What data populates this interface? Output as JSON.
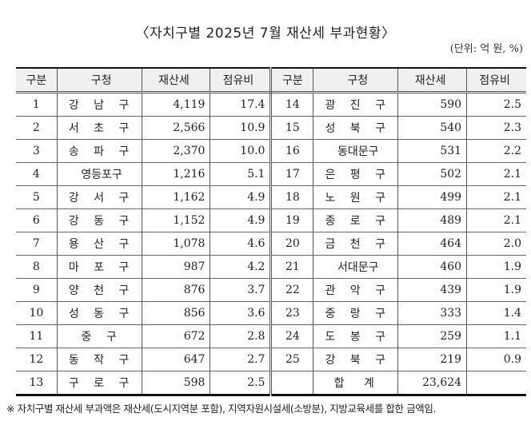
{
  "title": "〈자치구별 2025년 7월 재산세 부과현황〉",
  "unit": "(단위: 억 원, %)",
  "headers": [
    "구분",
    "구청",
    "재산세",
    "점유비",
    "구분",
    "구청",
    "재산세",
    "점유비"
  ],
  "left_rows": [
    {
      "no": "1",
      "name": "강 남 구",
      "tax": "4,119",
      "pct": "17.4"
    },
    {
      "no": "2",
      "name": "서 초 구",
      "tax": "2,566",
      "pct": "10.9"
    },
    {
      "no": "3",
      "name": "송 파 구",
      "tax": "2,370",
      "pct": "10.0"
    },
    {
      "no": "4",
      "name": "영등포구",
      "tax": "1,216",
      "pct": "5.1"
    },
    {
      "no": "5",
      "name": "강 서 구",
      "tax": "1,162",
      "pct": "4.9"
    },
    {
      "no": "6",
      "name": "강 동 구",
      "tax": "1,152",
      "pct": "4.9"
    },
    {
      "no": "7",
      "name": "용 산 구",
      "tax": "1,078",
      "pct": "4.6"
    },
    {
      "no": "8",
      "name": "마 포 구",
      "tax": "987",
      "pct": "4.2"
    },
    {
      "no": "9",
      "name": "양 천 구",
      "tax": "876",
      "pct": "3.7"
    },
    {
      "no": "10",
      "name": "성 동 구",
      "tax": "856",
      "pct": "3.6"
    },
    {
      "no": "11",
      "name": "중    구",
      "tax": "672",
      "pct": "2.8"
    },
    {
      "no": "12",
      "name": "동 작 구",
      "tax": "647",
      "pct": "2.7"
    },
    {
      "no": "13",
      "name": "구 로 구",
      "tax": "598",
      "pct": "2.5"
    }
  ],
  "right_rows": [
    {
      "no": "14",
      "name": "광 진 구",
      "tax": "590",
      "pct": "2.5"
    },
    {
      "no": "15",
      "name": "성 북 구",
      "tax": "540",
      "pct": "2.3"
    },
    {
      "no": "16",
      "name": "동대문구",
      "tax": "531",
      "pct": "2.2"
    },
    {
      "no": "17",
      "name": "은 평 구",
      "tax": "502",
      "pct": "2.1"
    },
    {
      "no": "18",
      "name": "노 원 구",
      "tax": "499",
      "pct": "2.1"
    },
    {
      "no": "19",
      "name": "종 로 구",
      "tax": "489",
      "pct": "2.1"
    },
    {
      "no": "20",
      "name": "금 천 구",
      "tax": "464",
      "pct": "2.0"
    },
    {
      "no": "21",
      "name": "서대문구",
      "tax": "460",
      "pct": "1.9"
    },
    {
      "no": "22",
      "name": "관 악 구",
      "tax": "439",
      "pct": "1.9"
    },
    {
      "no": "23",
      "name": "중 랑 구",
      "tax": "333",
      "pct": "1.4"
    },
    {
      "no": "24",
      "name": "도 봉 구",
      "tax": "259",
      "pct": "1.1"
    },
    {
      "no": "25",
      "name": "강 북 구",
      "tax": "219",
      "pct": "0.9"
    }
  ],
  "total": {
    "label": "합 계",
    "tax": "23,624",
    "pct": ""
  },
  "note": "※ 자치구별 재산세 부과액은 재산세(도시지역분 포함), 지역자원시설세(소방분), 지방교육세를 합한 금액임."
}
